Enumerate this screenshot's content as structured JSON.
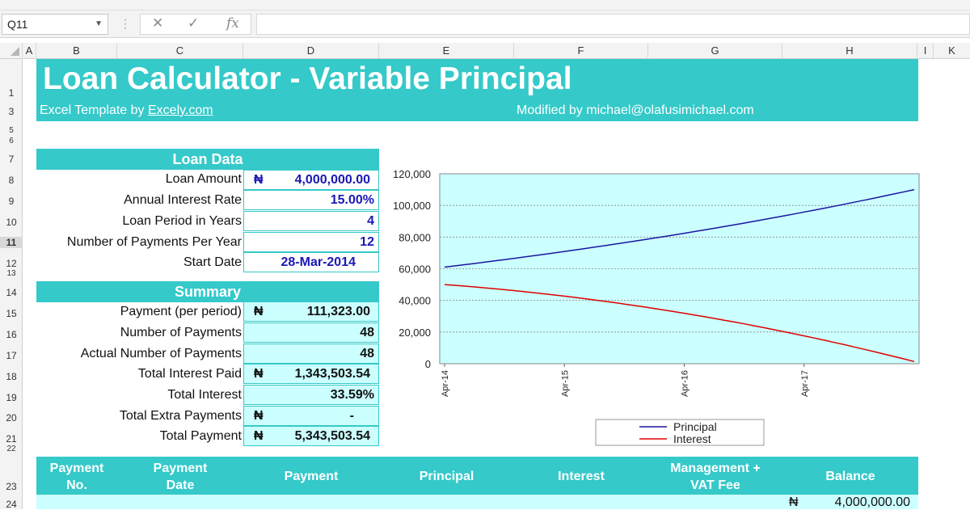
{
  "name_box": {
    "value": "Q11"
  },
  "formula_bar": {
    "cancel_glyph": "✕",
    "enter_glyph": "✓",
    "fx_glyph": "fx",
    "value": ""
  },
  "columns": [
    "A",
    "B",
    "C",
    "D",
    "E",
    "F",
    "G",
    "H",
    "I",
    "K"
  ],
  "rows": [
    "1",
    "3",
    "5",
    "6",
    "7",
    "8",
    "9",
    "10",
    "11",
    "12",
    "13",
    "14",
    "15",
    "16",
    "17",
    "18",
    "19",
    "20",
    "21",
    "22",
    "23",
    "24"
  ],
  "banner": {
    "title": "Loan Calculator - Variable Principal",
    "template_prefix": "Excel Template by ",
    "template_link": "Excely.com",
    "modified_by": "Modified by michael@olafusimichael.com"
  },
  "loan_data": {
    "header": "Loan Data",
    "rows": [
      {
        "label": "Loan Amount",
        "currency": "₦",
        "value": "4,000,000.00"
      },
      {
        "label": "Annual Interest Rate",
        "currency": "",
        "value": "15.00%"
      },
      {
        "label": "Loan Period in Years",
        "currency": "",
        "value": "4"
      },
      {
        "label": "Number of Payments Per Year",
        "currency": "",
        "value": "12"
      },
      {
        "label": "Start Date",
        "currency": "",
        "value": "28-Mar-2014"
      }
    ]
  },
  "summary": {
    "header": "Summary",
    "rows": [
      {
        "label": "Payment (per period)",
        "currency": "₦",
        "value": "111,323.00"
      },
      {
        "label": "Number of Payments",
        "currency": "",
        "value": "48"
      },
      {
        "label": "Actual Number of Payments",
        "currency": "",
        "value": "48"
      },
      {
        "label": "Total Interest Paid",
        "currency": "₦",
        "value": "1,343,503.54"
      },
      {
        "label": "Total Interest",
        "currency": "",
        "value": "33.59%"
      },
      {
        "label": "Total Extra Payments",
        "currency": "₦",
        "value": "-"
      },
      {
        "label": "Total Payment",
        "currency": "₦",
        "value": "5,343,503.54"
      }
    ]
  },
  "chart_data": {
    "type": "line",
    "y_ticks": [
      "120,000",
      "100,000",
      "80,000",
      "60,000",
      "40,000",
      "20,000",
      "0"
    ],
    "x_ticks": [
      "Apr-14",
      "Apr-15",
      "Apr-16",
      "Apr-17"
    ],
    "ylim": [
      0,
      120000
    ],
    "grid": true,
    "legend_position": "bottom",
    "series": [
      {
        "name": "Principal",
        "color": "#1a17a0",
        "start": 61000,
        "end": 110000,
        "periods": 48
      },
      {
        "name": "Interest",
        "color": "#e00000",
        "start": 50000,
        "end": 1400,
        "periods": 48
      }
    ]
  },
  "schedule": {
    "headers": [
      {
        "line1": "Payment",
        "line2": "No."
      },
      {
        "line1": "Payment",
        "line2": "Date"
      },
      {
        "line1": "Payment",
        "line2": ""
      },
      {
        "line1": "Principal",
        "line2": ""
      },
      {
        "line1": "Interest",
        "line2": ""
      },
      {
        "line1": "Management +",
        "line2": "VAT Fee"
      },
      {
        "line1": "Balance",
        "line2": ""
      }
    ],
    "first_row": {
      "currency": "₦",
      "balance": "4,000,000.00"
    }
  },
  "colors": {
    "accent": "#35c9c9",
    "value_blue": "#1a17b5",
    "chart_bg": "#ccffff"
  }
}
